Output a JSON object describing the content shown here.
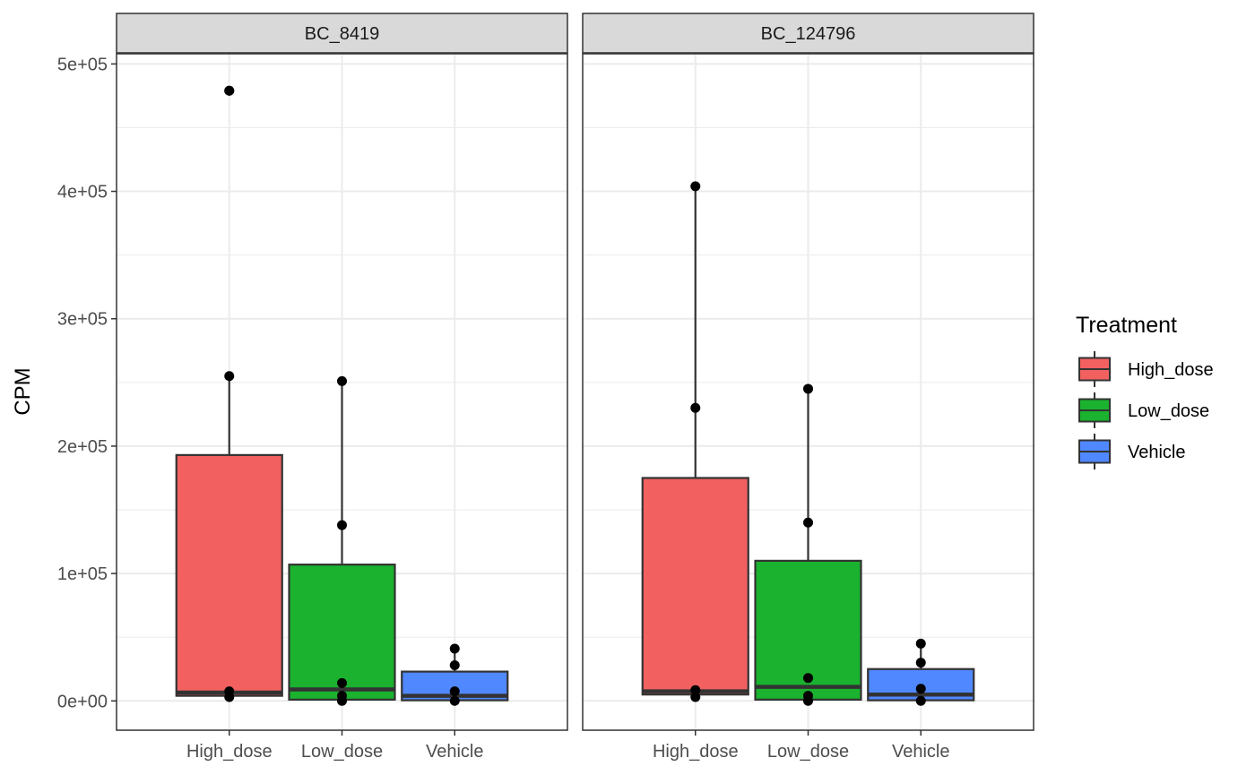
{
  "chart_data": {
    "type": "box",
    "ylabel": "CPM",
    "xlabel": "",
    "ylim": [
      -23000,
      508000
    ],
    "y_ticks": [
      0,
      100000,
      200000,
      300000,
      400000,
      500000
    ],
    "y_tick_labels": [
      "0e+00",
      "1e+05",
      "2e+05",
      "3e+05",
      "4e+05",
      "5e+05"
    ],
    "categories": [
      "High_dose",
      "Low_dose",
      "Vehicle"
    ],
    "grid": true,
    "legend": {
      "title": "Treatment",
      "position": "right",
      "entries": [
        {
          "label": "High_dose",
          "color": "#F8766D"
        },
        {
          "label": "Low_dose",
          "color": "#00BA38"
        },
        {
          "label": "Vehicle",
          "color": "#619CFF"
        }
      ]
    },
    "colors": {
      "High_dose": "#F26060",
      "Low_dose": "#1AB22E",
      "Vehicle": "#5088FF",
      "strip_bg": "#D9D9D9",
      "grid": "#EBEBEB"
    },
    "facets": [
      {
        "label": "BC_8419",
        "boxes": [
          {
            "category": "High_dose",
            "min": 3000,
            "q1": 4000,
            "median": 6500,
            "q3": 193000,
            "max": 255000,
            "outliers": [
              479000
            ],
            "points": [
              479000,
              255000,
              7500,
              3000
            ]
          },
          {
            "category": "Low_dose",
            "min": 0,
            "q1": 1000,
            "median": 9000,
            "q3": 107000,
            "max": 251000,
            "outliers": [],
            "points": [
              251000,
              138000,
              14000,
              4000,
              0
            ]
          },
          {
            "category": "Vehicle",
            "min": 0,
            "q1": 500,
            "median": 4000,
            "q3": 23000,
            "max": 41000,
            "outliers": [],
            "points": [
              41000,
              28000,
              7500,
              0
            ]
          }
        ]
      },
      {
        "label": "BC_124796",
        "boxes": [
          {
            "category": "High_dose",
            "min": 3000,
            "q1": 5000,
            "median": 7500,
            "q3": 175000,
            "max": 404000,
            "outliers": [],
            "points": [
              404000,
              230000,
              8500,
              3000
            ]
          },
          {
            "category": "Low_dose",
            "min": 0,
            "q1": 1000,
            "median": 11000,
            "q3": 110000,
            "max": 245000,
            "outliers": [],
            "points": [
              245000,
              140000,
              18000,
              4000,
              0
            ]
          },
          {
            "category": "Vehicle",
            "min": 0,
            "q1": 500,
            "median": 5000,
            "q3": 25000,
            "max": 45000,
            "outliers": [],
            "points": [
              45000,
              30000,
              9500,
              0
            ]
          }
        ]
      }
    ]
  }
}
